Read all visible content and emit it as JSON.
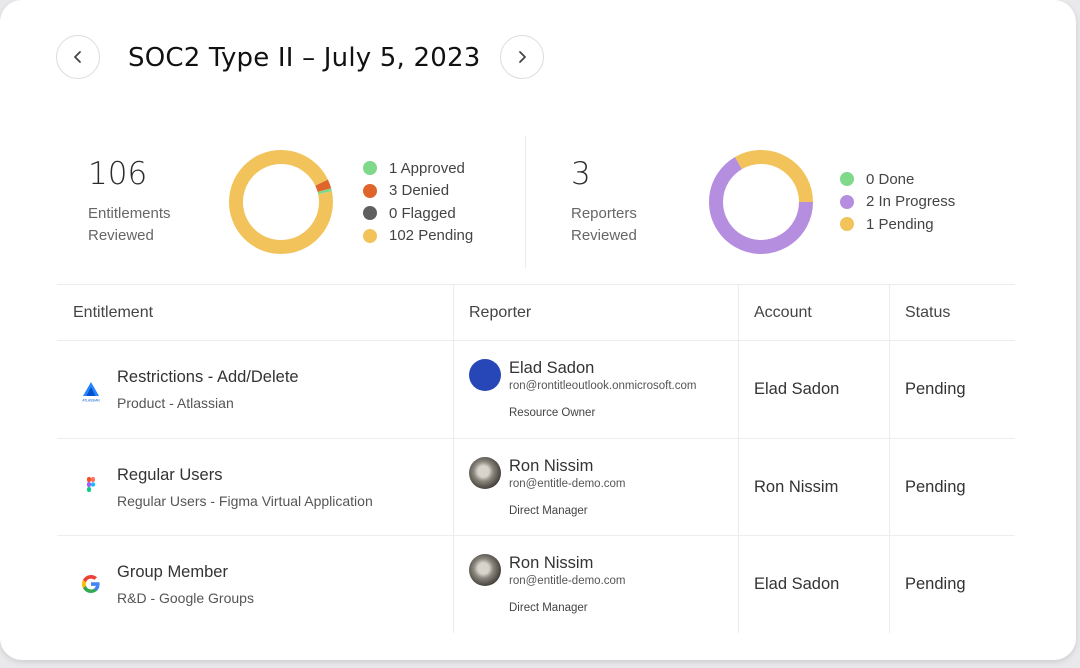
{
  "header": {
    "title": "SOC2 Type II – July 5, 2023",
    "prev_icon": "chevron-left-icon",
    "next_icon": "chevron-right-icon"
  },
  "entitlements_summary": {
    "count": "106",
    "label_line1": "Entitlements",
    "label_line2": "Reviewed",
    "legend": [
      {
        "label": "1 Approved",
        "color": "#7ed98a",
        "value": 1
      },
      {
        "label": "3 Denied",
        "color": "#e0652b",
        "value": 3
      },
      {
        "label": "0 Flagged",
        "color": "#5f5f5f",
        "value": 0
      },
      {
        "label": "102 Pending",
        "color": "#f2c35a",
        "value": 102
      }
    ]
  },
  "reporters_summary": {
    "count": "3",
    "label_line1": "Reporters",
    "label_line2": "Reviewed",
    "legend": [
      {
        "label": "0 Done",
        "color": "#7ed98a",
        "value": 0
      },
      {
        "label": "2 In Progress",
        "color": "#b58ee0",
        "value": 2
      },
      {
        "label": "1 Pending",
        "color": "#f2c35a",
        "value": 1
      }
    ]
  },
  "table": {
    "headers": {
      "entitlement": "Entitlement",
      "reporter": "Reporter",
      "account": "Account",
      "status": "Status"
    },
    "rows": [
      {
        "app_icon": "atlassian-icon",
        "app_icon_caption": "ATLASSIAN",
        "entitlement": "Restrictions - Add/Delete",
        "entitlement_sub": "Product - Atlassian",
        "reporter_name": "Elad Sadon",
        "reporter_email": "ron@rontitleoutlook.onmicrosoft.com",
        "reporter_role": "Resource Owner",
        "avatar_color": "#2747b8",
        "account": "Elad Sadon",
        "status": "Pending"
      },
      {
        "app_icon": "figma-icon",
        "entitlement": "Regular Users",
        "entitlement_sub": "Regular Users - Figma Virtual Application",
        "reporter_name": "Ron Nissim",
        "reporter_email": "ron@entitle-demo.com",
        "reporter_role": "Direct Manager",
        "avatar_color": "photo",
        "account": "Ron Nissim",
        "status": "Pending"
      },
      {
        "app_icon": "google-icon",
        "entitlement": "Group Member",
        "entitlement_sub": "R&D - Google Groups",
        "reporter_name": "Ron Nissim",
        "reporter_email": "ron@entitle-demo.com",
        "reporter_role": "Direct Manager",
        "avatar_color": "photo",
        "account": "Elad Sadon",
        "status": "Pending"
      }
    ]
  }
}
